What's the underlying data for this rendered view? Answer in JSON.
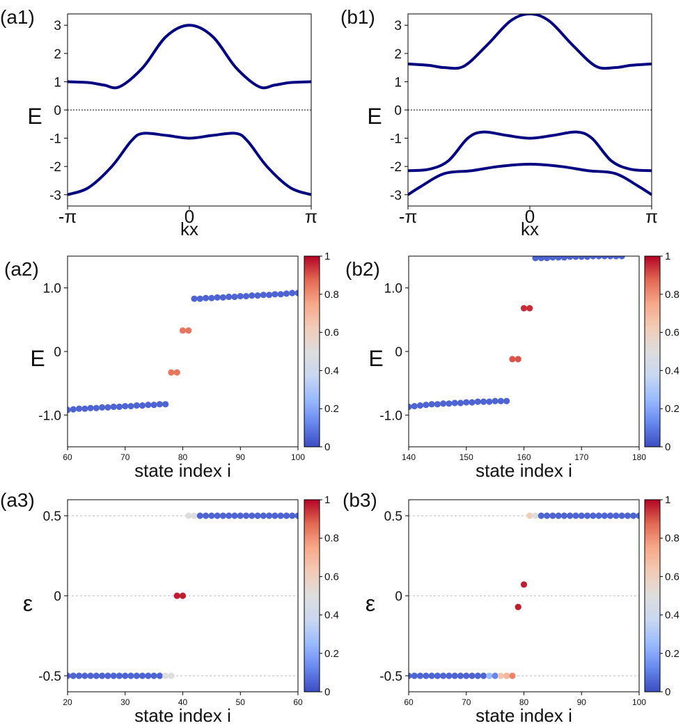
{
  "panels": {
    "a1": {
      "label": "(a1)",
      "xlabel": "kx",
      "ylabel": "E",
      "yticks": [
        "3",
        "2",
        "1",
        "0",
        "-1",
        "-2",
        "-3"
      ],
      "xticks": [
        "-π",
        "0",
        "π"
      ]
    },
    "b1": {
      "label": "(b1)",
      "xlabel": "kx",
      "ylabel": "E",
      "yticks": [
        "3",
        "2",
        "1",
        "0",
        "-1",
        "-2",
        "-3"
      ],
      "xticks": [
        "-π",
        "0",
        "π"
      ]
    },
    "a2": {
      "label": "(a2)",
      "xlabel": "state index i",
      "ylabel": "E",
      "yticks": [
        "1.0",
        "0",
        "-1.0"
      ],
      "xticks": [
        "60",
        "70",
        "80",
        "90",
        "100"
      ],
      "cbticks": [
        "1",
        "0.8",
        "0.6",
        "0.4",
        "0.2",
        "0"
      ]
    },
    "b2": {
      "label": "(b2)",
      "xlabel": "state index i",
      "ylabel": "E",
      "yticks": [
        "1.0",
        "0",
        "-1.0"
      ],
      "xticks": [
        "140",
        "150",
        "160",
        "170",
        "180"
      ],
      "cbticks": [
        "1",
        "0.8",
        "0.6",
        "0.4",
        "0.2",
        "0"
      ]
    },
    "a3": {
      "label": "(a3)",
      "xlabel": "state index i",
      "ylabel": "ε",
      "yticks": [
        "0.5",
        "0",
        "-0.5"
      ],
      "xticks": [
        "20",
        "30",
        "40",
        "50",
        "60"
      ],
      "cbticks": [
        "1",
        "0.8",
        "0.6",
        "0.4",
        "0.2",
        "0"
      ]
    },
    "b3": {
      "label": "(b3)",
      "xlabel": "state index i",
      "ylabel": "ε",
      "yticks": [
        "0.5",
        "0",
        "-0.5"
      ],
      "xticks": [
        "60",
        "70",
        "80",
        "90",
        "100"
      ],
      "cbticks": [
        "1",
        "0.8",
        "0.6",
        "0.4",
        "0.2",
        "0"
      ]
    }
  },
  "colors": {
    "band_line": "#000080",
    "grid_dash": "#b8b8b8",
    "zero_line": "#000000",
    "colormap": [
      "#3b4cc0",
      "#6788ee",
      "#9abbff",
      "#c9d7f0",
      "#dddddd",
      "#f2cbb7",
      "#f7a889",
      "#e26952",
      "#b40426"
    ]
  },
  "chart_data": [
    {
      "id": "a1",
      "type": "line",
      "xlim": [
        -3.14159,
        3.14159
      ],
      "ylim": [
        -3.4,
        3.4
      ],
      "reference_line": 0,
      "series": [
        {
          "x": [
            -3.1416,
            -2.6,
            -2.2,
            -1.8,
            -1.2,
            -0.6,
            0,
            0.6,
            1.2,
            1.8,
            2.2,
            2.6,
            3.1416
          ],
          "y": [
            1.0,
            0.97,
            0.88,
            0.82,
            1.5,
            2.6,
            3.0,
            2.6,
            1.5,
            0.82,
            0.88,
            0.97,
            1.0
          ]
        },
        {
          "x": [
            -3.1416,
            -2.6,
            -2.0,
            -1.5,
            -1.2,
            -0.6,
            0,
            0.6,
            1.2,
            1.5,
            2.0,
            2.6,
            3.1416
          ],
          "y": [
            -3.0,
            -2.75,
            -2.0,
            -1.1,
            -0.83,
            -0.9,
            -1.0,
            -0.9,
            -0.83,
            -1.1,
            -2.0,
            -2.75,
            -3.0
          ]
        }
      ]
    },
    {
      "id": "b1",
      "type": "line",
      "xlim": [
        -3.14159,
        3.14159
      ],
      "ylim": [
        -3.4,
        3.4
      ],
      "reference_line": 0,
      "series": [
        {
          "x": [
            -3.1416,
            -2.6,
            -2.2,
            -1.7,
            -1.1,
            -0.5,
            0,
            0.5,
            1.1,
            1.7,
            2.2,
            2.6,
            3.1416
          ],
          "y": [
            1.63,
            1.58,
            1.5,
            1.55,
            2.3,
            3.15,
            3.4,
            3.15,
            2.3,
            1.55,
            1.5,
            1.58,
            1.63
          ]
        },
        {
          "x": [
            -3.1416,
            -2.6,
            -2.1,
            -1.6,
            -1.2,
            -0.6,
            0,
            0.6,
            1.2,
            1.6,
            2.1,
            2.6,
            3.1416
          ],
          "y": [
            -2.15,
            -2.1,
            -1.8,
            -1.0,
            -0.78,
            -0.9,
            -1.0,
            -0.9,
            -0.78,
            -1.0,
            -1.8,
            -2.1,
            -2.15
          ]
        },
        {
          "x": [
            -3.1416,
            -2.8,
            -2.2,
            -1.5,
            -0.8,
            0,
            0.8,
            1.5,
            2.2,
            2.8,
            3.1416
          ],
          "y": [
            -3.0,
            -2.7,
            -2.25,
            -2.15,
            -2.0,
            -1.92,
            -2.0,
            -2.15,
            -2.25,
            -2.7,
            -3.0
          ]
        }
      ]
    },
    {
      "id": "a2",
      "type": "scatter",
      "xlim": [
        60,
        100
      ],
      "ylim": [
        -1.5,
        1.5
      ],
      "clim": [
        0,
        1
      ],
      "points": [
        [
          60,
          -0.92,
          0.05
        ],
        [
          61,
          -0.91,
          0.05
        ],
        [
          62,
          -0.9,
          0.05
        ],
        [
          63,
          -0.9,
          0.05
        ],
        [
          64,
          -0.89,
          0.05
        ],
        [
          65,
          -0.89,
          0.05
        ],
        [
          66,
          -0.88,
          0.05
        ],
        [
          67,
          -0.88,
          0.05
        ],
        [
          68,
          -0.87,
          0.05
        ],
        [
          69,
          -0.87,
          0.05
        ],
        [
          70,
          -0.86,
          0.05
        ],
        [
          71,
          -0.86,
          0.05
        ],
        [
          72,
          -0.85,
          0.05
        ],
        [
          73,
          -0.85,
          0.05
        ],
        [
          74,
          -0.84,
          0.05
        ],
        [
          75,
          -0.84,
          0.05
        ],
        [
          76,
          -0.83,
          0.05
        ],
        [
          77,
          -0.83,
          0.05
        ],
        [
          78,
          -0.33,
          0.85
        ],
        [
          79,
          -0.33,
          0.85
        ],
        [
          80,
          0.33,
          0.85
        ],
        [
          81,
          0.33,
          0.85
        ],
        [
          82,
          0.83,
          0.05
        ],
        [
          83,
          0.83,
          0.05
        ],
        [
          84,
          0.84,
          0.05
        ],
        [
          85,
          0.84,
          0.05
        ],
        [
          86,
          0.85,
          0.05
        ],
        [
          87,
          0.85,
          0.05
        ],
        [
          88,
          0.86,
          0.05
        ],
        [
          89,
          0.86,
          0.05
        ],
        [
          90,
          0.87,
          0.05
        ],
        [
          91,
          0.87,
          0.05
        ],
        [
          92,
          0.88,
          0.05
        ],
        [
          93,
          0.88,
          0.05
        ],
        [
          94,
          0.89,
          0.05
        ],
        [
          95,
          0.89,
          0.05
        ],
        [
          96,
          0.9,
          0.05
        ],
        [
          97,
          0.9,
          0.05
        ],
        [
          98,
          0.91,
          0.05
        ],
        [
          99,
          0.92,
          0.05
        ],
        [
          100,
          0.92,
          0.05
        ]
      ]
    },
    {
      "id": "b2",
      "type": "scatter",
      "xlim": [
        140,
        180
      ],
      "ylim": [
        -1.5,
        1.5
      ],
      "clim": [
        0,
        1
      ],
      "points": [
        [
          140,
          -0.87,
          0.05
        ],
        [
          141,
          -0.86,
          0.05
        ],
        [
          142,
          -0.85,
          0.05
        ],
        [
          143,
          -0.84,
          0.05
        ],
        [
          144,
          -0.83,
          0.05
        ],
        [
          145,
          -0.83,
          0.05
        ],
        [
          146,
          -0.82,
          0.05
        ],
        [
          147,
          -0.82,
          0.05
        ],
        [
          148,
          -0.81,
          0.05
        ],
        [
          149,
          -0.81,
          0.05
        ],
        [
          150,
          -0.8,
          0.05
        ],
        [
          151,
          -0.8,
          0.05
        ],
        [
          152,
          -0.79,
          0.05
        ],
        [
          153,
          -0.79,
          0.05
        ],
        [
          154,
          -0.79,
          0.05
        ],
        [
          155,
          -0.78,
          0.05
        ],
        [
          156,
          -0.78,
          0.05
        ],
        [
          157,
          -0.78,
          0.05
        ],
        [
          158,
          -0.12,
          0.9
        ],
        [
          159,
          -0.12,
          0.9
        ],
        [
          160,
          0.68,
          0.95
        ],
        [
          161,
          0.68,
          0.95
        ],
        [
          162,
          1.47,
          0.05
        ],
        [
          163,
          1.47,
          0.05
        ],
        [
          164,
          1.47,
          0.05
        ],
        [
          165,
          1.48,
          0.05
        ],
        [
          166,
          1.48,
          0.05
        ],
        [
          167,
          1.48,
          0.05
        ],
        [
          168,
          1.49,
          0.05
        ],
        [
          169,
          1.49,
          0.05
        ],
        [
          170,
          1.49,
          0.05
        ],
        [
          171,
          1.49,
          0.05
        ],
        [
          172,
          1.5,
          0.05
        ],
        [
          173,
          1.5,
          0.05
        ],
        [
          174,
          1.5,
          0.05
        ],
        [
          175,
          1.5,
          0.05
        ],
        [
          176,
          1.5,
          0.05
        ],
        [
          177,
          1.5,
          0.05
        ]
      ]
    },
    {
      "id": "a3",
      "type": "scatter",
      "xlim": [
        20,
        60
      ],
      "ylim": [
        -0.6,
        0.6
      ],
      "clim": [
        0,
        1
      ],
      "reference_lines": [
        -0.5,
        0,
        0.5
      ],
      "points": [
        [
          20,
          -0.5,
          0.05
        ],
        [
          21,
          -0.5,
          0.05
        ],
        [
          22,
          -0.5,
          0.05
        ],
        [
          23,
          -0.5,
          0.05
        ],
        [
          24,
          -0.5,
          0.05
        ],
        [
          25,
          -0.5,
          0.05
        ],
        [
          26,
          -0.5,
          0.05
        ],
        [
          27,
          -0.5,
          0.05
        ],
        [
          28,
          -0.5,
          0.05
        ],
        [
          29,
          -0.5,
          0.05
        ],
        [
          30,
          -0.5,
          0.05
        ],
        [
          31,
          -0.5,
          0.05
        ],
        [
          32,
          -0.5,
          0.05
        ],
        [
          33,
          -0.5,
          0.05
        ],
        [
          34,
          -0.5,
          0.05
        ],
        [
          35,
          -0.5,
          0.05
        ],
        [
          36,
          -0.5,
          0.05
        ],
        [
          37,
          -0.5,
          0.5
        ],
        [
          38,
          -0.5,
          0.5
        ],
        [
          39,
          0,
          0.97
        ],
        [
          40,
          0,
          0.97
        ],
        [
          41,
          0.5,
          0.5
        ],
        [
          42,
          0.5,
          0.5
        ],
        [
          43,
          0.5,
          0.05
        ],
        [
          44,
          0.5,
          0.05
        ],
        [
          45,
          0.5,
          0.05
        ],
        [
          46,
          0.5,
          0.05
        ],
        [
          47,
          0.5,
          0.05
        ],
        [
          48,
          0.5,
          0.05
        ],
        [
          49,
          0.5,
          0.05
        ],
        [
          50,
          0.5,
          0.05
        ],
        [
          51,
          0.5,
          0.05
        ],
        [
          52,
          0.5,
          0.05
        ],
        [
          53,
          0.5,
          0.05
        ],
        [
          54,
          0.5,
          0.05
        ],
        [
          55,
          0.5,
          0.05
        ],
        [
          56,
          0.5,
          0.05
        ],
        [
          57,
          0.5,
          0.05
        ],
        [
          58,
          0.5,
          0.05
        ],
        [
          59,
          0.5,
          0.05
        ],
        [
          60,
          0.5,
          0.05
        ]
      ]
    },
    {
      "id": "b3",
      "type": "scatter",
      "xlim": [
        60,
        100
      ],
      "ylim": [
        -0.6,
        0.6
      ],
      "clim": [
        0,
        1
      ],
      "reference_lines": [
        -0.5,
        0,
        0.5
      ],
      "points": [
        [
          60,
          -0.5,
          0.05
        ],
        [
          61,
          -0.5,
          0.05
        ],
        [
          62,
          -0.5,
          0.05
        ],
        [
          63,
          -0.5,
          0.05
        ],
        [
          64,
          -0.5,
          0.05
        ],
        [
          65,
          -0.5,
          0.05
        ],
        [
          66,
          -0.5,
          0.05
        ],
        [
          67,
          -0.5,
          0.05
        ],
        [
          68,
          -0.5,
          0.05
        ],
        [
          69,
          -0.5,
          0.05
        ],
        [
          70,
          -0.5,
          0.05
        ],
        [
          71,
          -0.5,
          0.05
        ],
        [
          72,
          -0.5,
          0.05
        ],
        [
          73,
          -0.5,
          0.05
        ],
        [
          74,
          -0.5,
          0.25
        ],
        [
          75,
          -0.5,
          0.12
        ],
        [
          76,
          -0.5,
          0.65
        ],
        [
          77,
          -0.5,
          0.7
        ],
        [
          78,
          -0.5,
          0.82
        ],
        [
          79,
          -0.07,
          0.97
        ],
        [
          80,
          0.07,
          0.97
        ],
        [
          81,
          0.5,
          0.6
        ],
        [
          82,
          0.5,
          0.5
        ],
        [
          83,
          0.5,
          0.05
        ],
        [
          84,
          0.5,
          0.05
        ],
        [
          85,
          0.5,
          0.05
        ],
        [
          86,
          0.5,
          0.05
        ],
        [
          87,
          0.5,
          0.05
        ],
        [
          88,
          0.5,
          0.05
        ],
        [
          89,
          0.5,
          0.05
        ],
        [
          90,
          0.5,
          0.05
        ],
        [
          91,
          0.5,
          0.05
        ],
        [
          92,
          0.5,
          0.05
        ],
        [
          93,
          0.5,
          0.05
        ],
        [
          94,
          0.5,
          0.05
        ],
        [
          95,
          0.5,
          0.05
        ],
        [
          96,
          0.5,
          0.05
        ],
        [
          97,
          0.5,
          0.05
        ],
        [
          98,
          0.5,
          0.05
        ],
        [
          99,
          0.5,
          0.05
        ],
        [
          100,
          0.5,
          0.05
        ]
      ]
    }
  ]
}
